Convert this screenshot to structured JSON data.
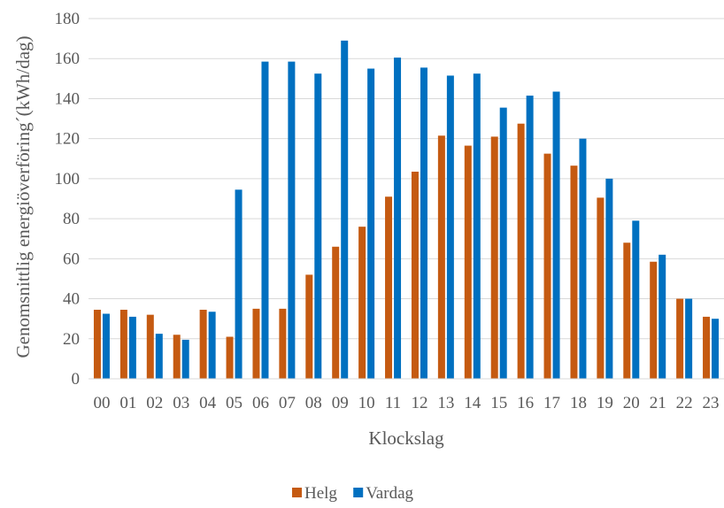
{
  "chart_data": {
    "type": "bar",
    "xlabel": "Klockslag",
    "ylabel": "Genomsnittlig energiöverföring´(kWh/dag)",
    "ylim": [
      0,
      180
    ],
    "yticks": [
      0,
      20,
      40,
      60,
      80,
      100,
      120,
      140,
      160,
      180
    ],
    "grid": true,
    "legend_position": "bottom",
    "categories": [
      "00",
      "01",
      "02",
      "03",
      "04",
      "05",
      "06",
      "07",
      "08",
      "09",
      "10",
      "11",
      "12",
      "13",
      "14",
      "15",
      "16",
      "17",
      "18",
      "19",
      "20",
      "21",
      "22",
      "23"
    ],
    "series": [
      {
        "name": "Helg",
        "color": "#C55A11",
        "values": [
          34.5,
          34.5,
          32,
          22,
          34.5,
          21,
          35,
          35,
          52,
          66,
          76,
          91,
          103.5,
          121.5,
          116.5,
          121,
          127.5,
          112.5,
          106.5,
          90.5,
          68,
          58.5,
          40,
          31
        ]
      },
      {
        "name": "Vardag",
        "color": "#0070C0",
        "values": [
          32.5,
          31,
          22.5,
          19.5,
          33.5,
          94.5,
          158.5,
          158.5,
          152.5,
          169,
          155,
          160.5,
          155.5,
          151.5,
          152.5,
          135.5,
          141.5,
          143.5,
          120,
          100,
          79,
          62,
          40,
          30
        ]
      }
    ]
  }
}
